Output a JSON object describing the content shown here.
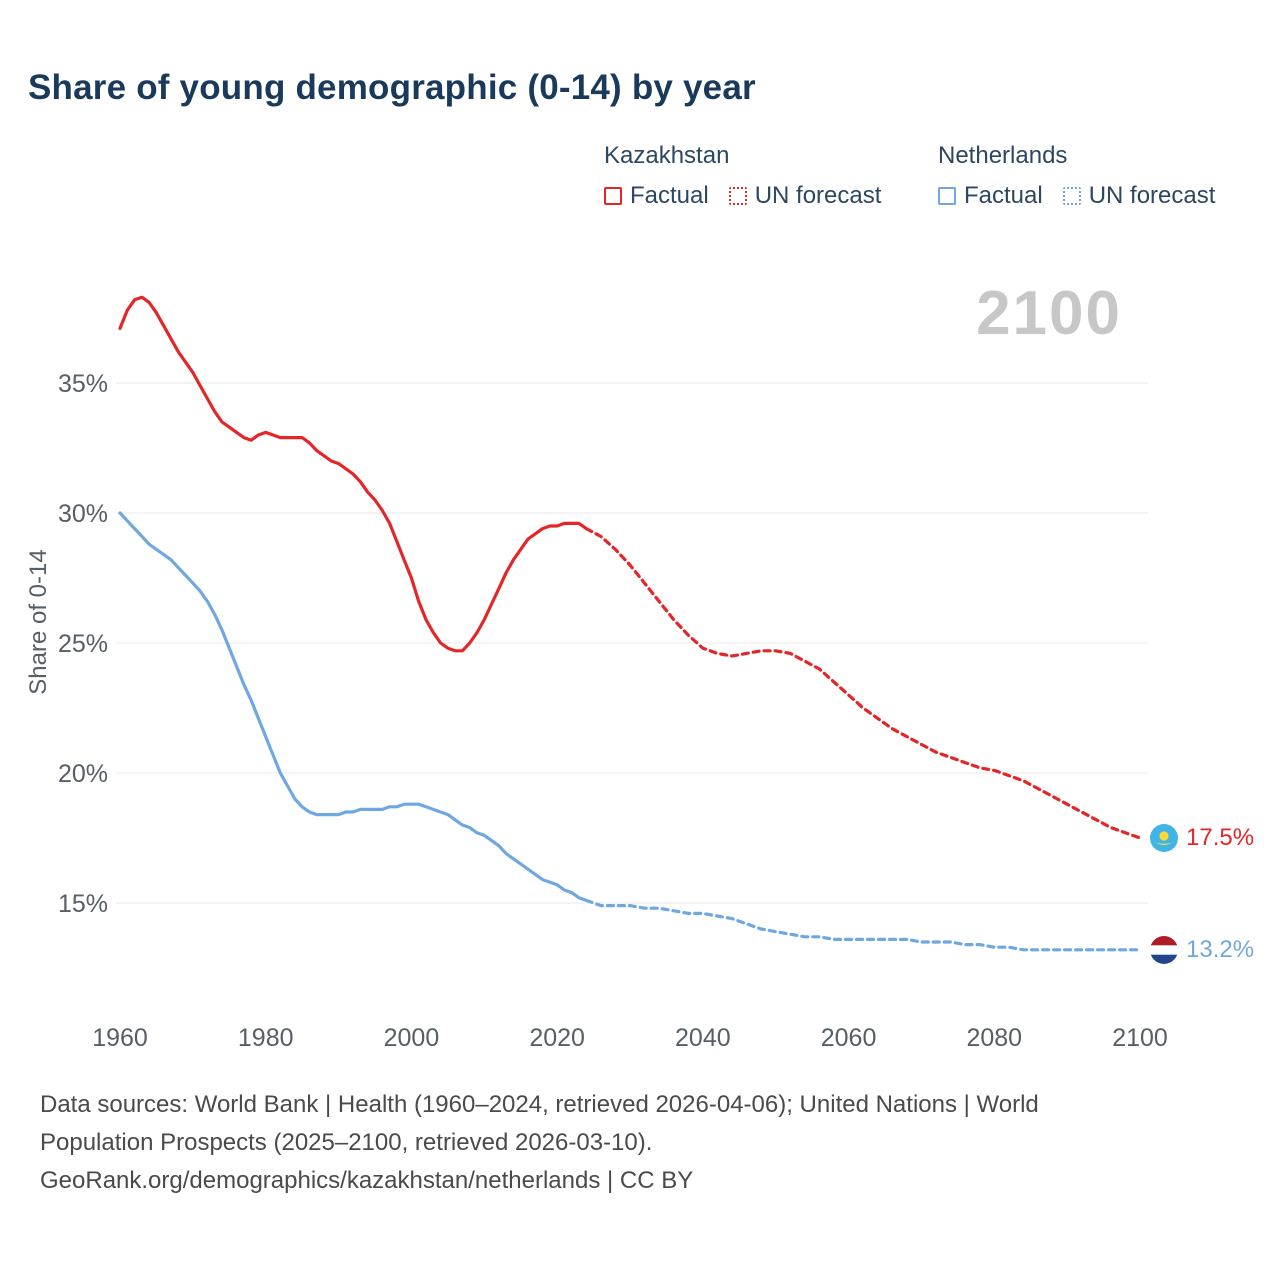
{
  "title": "Share of young demographic (0-14) by year",
  "watermark": "2100",
  "legend": {
    "kazakhstan": {
      "label": "Kazakhstan",
      "factual": "Factual",
      "forecast": "UN forecast"
    },
    "netherlands": {
      "label": "Netherlands",
      "factual": "Factual",
      "forecast": "UN forecast"
    }
  },
  "end_labels": {
    "kazakhstan": "17.5%",
    "netherlands": "13.2%"
  },
  "footer": {
    "line1": "Data sources: World Bank | Health (1960–2024, retrieved 2026-04-06); United Nations | World",
    "line2": "Population Prospects (2025–2100, retrieved 2026-03-10).",
    "line3": "GeoRank.org/demographics/kazakhstan/netherlands | CC BY"
  },
  "colors": {
    "kazakhstan": "#e52629",
    "netherlands": "#6fa8e0",
    "title": "#1a3a5c",
    "axis": "#575f66",
    "grid": "#e9e9e9",
    "watermark": "#c7c7c7",
    "kz_flag_blue": "#3fb4e6",
    "kz_flag_yellow": "#ffd935",
    "nl_flag_red": "#AE1C28",
    "nl_flag_blue": "#21468B"
  },
  "chart_data": {
    "type": "line",
    "title": "Share of young demographic (0-14) by year",
    "xlabel": "",
    "ylabel": "Share of 0-14",
    "xlim": [
      1960,
      2100
    ],
    "ylim": [
      12,
      39.5
    ],
    "grid": "horizontal-only",
    "legend_position": "top-right",
    "x_ticks": [
      1960,
      1980,
      2000,
      2020,
      2040,
      2060,
      2080,
      2100
    ],
    "y_ticks": [
      {
        "value": 15,
        "label": "15%"
      },
      {
        "value": 20,
        "label": "20%"
      },
      {
        "value": 25,
        "label": "25%"
      },
      {
        "value": 30,
        "label": "30%"
      },
      {
        "value": 35,
        "label": "35%"
      }
    ],
    "series": [
      {
        "name": "Kazakhstan — Factual",
        "country": "kazakhstan",
        "style": "solid",
        "points": [
          [
            1960,
            37.1
          ],
          [
            1961,
            37.8
          ],
          [
            1962,
            38.2
          ],
          [
            1963,
            38.3
          ],
          [
            1964,
            38.1
          ],
          [
            1965,
            37.7
          ],
          [
            1966,
            37.2
          ],
          [
            1967,
            36.7
          ],
          [
            1968,
            36.2
          ],
          [
            1969,
            35.8
          ],
          [
            1970,
            35.4
          ],
          [
            1971,
            34.9
          ],
          [
            1972,
            34.4
          ],
          [
            1973,
            33.9
          ],
          [
            1974,
            33.5
          ],
          [
            1975,
            33.3
          ],
          [
            1976,
            33.1
          ],
          [
            1977,
            32.9
          ],
          [
            1978,
            32.8
          ],
          [
            1979,
            33.0
          ],
          [
            1980,
            33.1
          ],
          [
            1981,
            33.0
          ],
          [
            1982,
            32.9
          ],
          [
            1983,
            32.9
          ],
          [
            1984,
            32.9
          ],
          [
            1985,
            32.9
          ],
          [
            1986,
            32.7
          ],
          [
            1987,
            32.4
          ],
          [
            1988,
            32.2
          ],
          [
            1989,
            32.0
          ],
          [
            1990,
            31.9
          ],
          [
            1991,
            31.7
          ],
          [
            1992,
            31.5
          ],
          [
            1993,
            31.2
          ],
          [
            1994,
            30.8
          ],
          [
            1995,
            30.5
          ],
          [
            1996,
            30.1
          ],
          [
            1997,
            29.6
          ],
          [
            1998,
            28.9
          ],
          [
            1999,
            28.2
          ],
          [
            2000,
            27.5
          ],
          [
            2001,
            26.6
          ],
          [
            2002,
            25.9
          ],
          [
            2003,
            25.4
          ],
          [
            2004,
            25.0
          ],
          [
            2005,
            24.8
          ],
          [
            2006,
            24.7
          ],
          [
            2007,
            24.7
          ],
          [
            2008,
            25.0
          ],
          [
            2009,
            25.4
          ],
          [
            2010,
            25.9
          ],
          [
            2011,
            26.5
          ],
          [
            2012,
            27.1
          ],
          [
            2013,
            27.7
          ],
          [
            2014,
            28.2
          ],
          [
            2015,
            28.6
          ],
          [
            2016,
            29.0
          ],
          [
            2017,
            29.2
          ],
          [
            2018,
            29.4
          ],
          [
            2019,
            29.5
          ],
          [
            2020,
            29.5
          ],
          [
            2021,
            29.6
          ],
          [
            2022,
            29.6
          ],
          [
            2023,
            29.6
          ],
          [
            2024,
            29.4
          ]
        ]
      },
      {
        "name": "Kazakhstan — UN forecast",
        "country": "kazakhstan",
        "style": "dashed",
        "points": [
          [
            2024,
            29.4
          ],
          [
            2026,
            29.1
          ],
          [
            2028,
            28.6
          ],
          [
            2030,
            28.0
          ],
          [
            2032,
            27.3
          ],
          [
            2034,
            26.6
          ],
          [
            2036,
            25.9
          ],
          [
            2038,
            25.3
          ],
          [
            2040,
            24.8
          ],
          [
            2042,
            24.6
          ],
          [
            2044,
            24.5
          ],
          [
            2046,
            24.6
          ],
          [
            2048,
            24.7
          ],
          [
            2050,
            24.7
          ],
          [
            2052,
            24.6
          ],
          [
            2054,
            24.3
          ],
          [
            2056,
            24.0
          ],
          [
            2058,
            23.5
          ],
          [
            2060,
            23.0
          ],
          [
            2062,
            22.5
          ],
          [
            2064,
            22.1
          ],
          [
            2066,
            21.7
          ],
          [
            2068,
            21.4
          ],
          [
            2070,
            21.1
          ],
          [
            2072,
            20.8
          ],
          [
            2074,
            20.6
          ],
          [
            2076,
            20.4
          ],
          [
            2078,
            20.2
          ],
          [
            2080,
            20.1
          ],
          [
            2082,
            19.9
          ],
          [
            2084,
            19.7
          ],
          [
            2086,
            19.4
          ],
          [
            2088,
            19.1
          ],
          [
            2090,
            18.8
          ],
          [
            2092,
            18.5
          ],
          [
            2094,
            18.2
          ],
          [
            2096,
            17.9
          ],
          [
            2098,
            17.7
          ],
          [
            2100,
            17.5
          ]
        ]
      },
      {
        "name": "Netherlands — Factual",
        "country": "netherlands",
        "style": "solid",
        "points": [
          [
            1960,
            30.0
          ],
          [
            1961,
            29.7
          ],
          [
            1962,
            29.4
          ],
          [
            1963,
            29.1
          ],
          [
            1964,
            28.8
          ],
          [
            1965,
            28.6
          ],
          [
            1966,
            28.4
          ],
          [
            1967,
            28.2
          ],
          [
            1968,
            27.9
          ],
          [
            1969,
            27.6
          ],
          [
            1970,
            27.3
          ],
          [
            1971,
            27.0
          ],
          [
            1972,
            26.6
          ],
          [
            1973,
            26.1
          ],
          [
            1974,
            25.5
          ],
          [
            1975,
            24.8
          ],
          [
            1976,
            24.1
          ],
          [
            1977,
            23.4
          ],
          [
            1978,
            22.8
          ],
          [
            1979,
            22.1
          ],
          [
            1980,
            21.4
          ],
          [
            1981,
            20.7
          ],
          [
            1982,
            20.0
          ],
          [
            1983,
            19.5
          ],
          [
            1984,
            19.0
          ],
          [
            1985,
            18.7
          ],
          [
            1986,
            18.5
          ],
          [
            1987,
            18.4
          ],
          [
            1988,
            18.4
          ],
          [
            1989,
            18.4
          ],
          [
            1990,
            18.4
          ],
          [
            1991,
            18.5
          ],
          [
            1992,
            18.5
          ],
          [
            1993,
            18.6
          ],
          [
            1994,
            18.6
          ],
          [
            1995,
            18.6
          ],
          [
            1996,
            18.6
          ],
          [
            1997,
            18.7
          ],
          [
            1998,
            18.7
          ],
          [
            1999,
            18.8
          ],
          [
            2000,
            18.8
          ],
          [
            2001,
            18.8
          ],
          [
            2002,
            18.7
          ],
          [
            2003,
            18.6
          ],
          [
            2004,
            18.5
          ],
          [
            2005,
            18.4
          ],
          [
            2006,
            18.2
          ],
          [
            2007,
            18.0
          ],
          [
            2008,
            17.9
          ],
          [
            2009,
            17.7
          ],
          [
            2010,
            17.6
          ],
          [
            2011,
            17.4
          ],
          [
            2012,
            17.2
          ],
          [
            2013,
            16.9
          ],
          [
            2014,
            16.7
          ],
          [
            2015,
            16.5
          ],
          [
            2016,
            16.3
          ],
          [
            2017,
            16.1
          ],
          [
            2018,
            15.9
          ],
          [
            2019,
            15.8
          ],
          [
            2020,
            15.7
          ],
          [
            2021,
            15.5
          ],
          [
            2022,
            15.4
          ],
          [
            2023,
            15.2
          ],
          [
            2024,
            15.1
          ]
        ]
      },
      {
        "name": "Netherlands — UN forecast",
        "country": "netherlands",
        "style": "dashed",
        "points": [
          [
            2024,
            15.1
          ],
          [
            2026,
            14.9
          ],
          [
            2028,
            14.9
          ],
          [
            2030,
            14.9
          ],
          [
            2032,
            14.8
          ],
          [
            2034,
            14.8
          ],
          [
            2036,
            14.7
          ],
          [
            2038,
            14.6
          ],
          [
            2040,
            14.6
          ],
          [
            2042,
            14.5
          ],
          [
            2044,
            14.4
          ],
          [
            2046,
            14.2
          ],
          [
            2048,
            14.0
          ],
          [
            2050,
            13.9
          ],
          [
            2052,
            13.8
          ],
          [
            2054,
            13.7
          ],
          [
            2056,
            13.7
          ],
          [
            2058,
            13.6
          ],
          [
            2060,
            13.6
          ],
          [
            2062,
            13.6
          ],
          [
            2064,
            13.6
          ],
          [
            2066,
            13.6
          ],
          [
            2068,
            13.6
          ],
          [
            2070,
            13.5
          ],
          [
            2072,
            13.5
          ],
          [
            2074,
            13.5
          ],
          [
            2076,
            13.4
          ],
          [
            2078,
            13.4
          ],
          [
            2080,
            13.3
          ],
          [
            2082,
            13.3
          ],
          [
            2084,
            13.2
          ],
          [
            2086,
            13.2
          ],
          [
            2088,
            13.2
          ],
          [
            2090,
            13.2
          ],
          [
            2092,
            13.2
          ],
          [
            2094,
            13.2
          ],
          [
            2096,
            13.2
          ],
          [
            2098,
            13.2
          ],
          [
            2100,
            13.2
          ]
        ]
      }
    ]
  }
}
